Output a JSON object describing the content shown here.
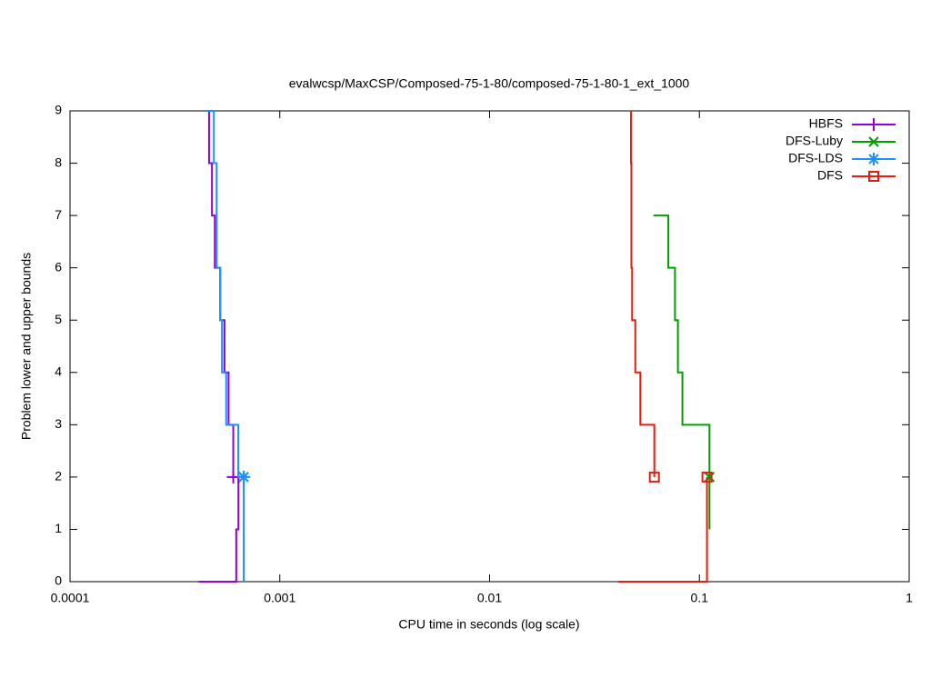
{
  "chart_data": {
    "type": "step",
    "title": "evalwcsp/MaxCSP/Composed-75-1-80/composed-75-1-80-1_ext_1000",
    "x_label": "CPU time in seconds (log scale)",
    "y_label": "Problem lower and upper bounds",
    "x_log": true,
    "xlim": [
      0.0001,
      1
    ],
    "xticks": [
      0.0001,
      0.001,
      0.01,
      0.1,
      1
    ],
    "ylim": [
      0,
      9
    ],
    "yticks": [
      0,
      1,
      2,
      3,
      4,
      5,
      6,
      7,
      8,
      9
    ],
    "legend": "top-right",
    "series": [
      {
        "name": "HBFS",
        "color": "#9400d3",
        "marker": "plus",
        "upper": {
          "x": [
            0.00046,
            0.00046,
            0.000475,
            0.000475,
            0.00049,
            0.00049,
            0.00052,
            0.00052,
            0.000545,
            0.000545,
            0.00057,
            0.00057,
            0.0006,
            0.0006
          ],
          "y": [
            9,
            8,
            8,
            7,
            7,
            6,
            6,
            5,
            5,
            4,
            4,
            3,
            3,
            2
          ]
        },
        "lower": {
          "x": [
            0.00041,
            0.00062,
            0.00062,
            0.000635,
            0.000635
          ],
          "y": [
            0,
            0,
            1,
            1,
            2
          ]
        }
      },
      {
        "name": "DFS-Luby",
        "color": "#009e00",
        "marker": "cross",
        "upper": {
          "x": [
            0.0604,
            0.0711,
            0.0711,
            0.0765,
            0.0765,
            0.079,
            0.079,
            0.083,
            0.083,
            0.1117,
            0.1117
          ],
          "y": [
            7,
            7,
            6,
            6,
            5,
            5,
            4,
            4,
            3,
            3,
            2
          ]
        },
        "lower": {
          "x": [
            0.1117,
            0.1117
          ],
          "y": [
            1,
            2
          ]
        }
      },
      {
        "name": "DFS-LDS",
        "color": "#1e90ff",
        "marker": "star",
        "upper": {
          "x": [
            0.000445,
            0.000485,
            0.000485,
            0.0005,
            0.0005,
            0.00052,
            0.00052,
            0.00053,
            0.00053,
            0.000555,
            0.000555,
            0.000634,
            0.000634,
            0.000673
          ],
          "y": [
            9,
            9,
            8,
            8,
            6,
            6,
            5,
            5,
            4,
            4,
            3,
            3,
            2,
            2
          ]
        },
        "lower": {
          "x": [
            0.000673,
            0.000673
          ],
          "y": [
            0,
            2
          ]
        }
      },
      {
        "name": "DFS",
        "color": "#e51e10",
        "marker": "square",
        "upper": {
          "x": [
            0.0472,
            0.0472,
            0.0474,
            0.0474,
            0.0478,
            0.0478,
            0.0495,
            0.0495,
            0.0523,
            0.0523,
            0.061,
            0.061
          ],
          "y": [
            9,
            8,
            8,
            6,
            6,
            5,
            5,
            4,
            4,
            3,
            3,
            2
          ]
        },
        "lower": {
          "x": [
            0.041,
            0.1087,
            0.1087
          ],
          "y": [
            0,
            0,
            2
          ]
        }
      }
    ]
  }
}
